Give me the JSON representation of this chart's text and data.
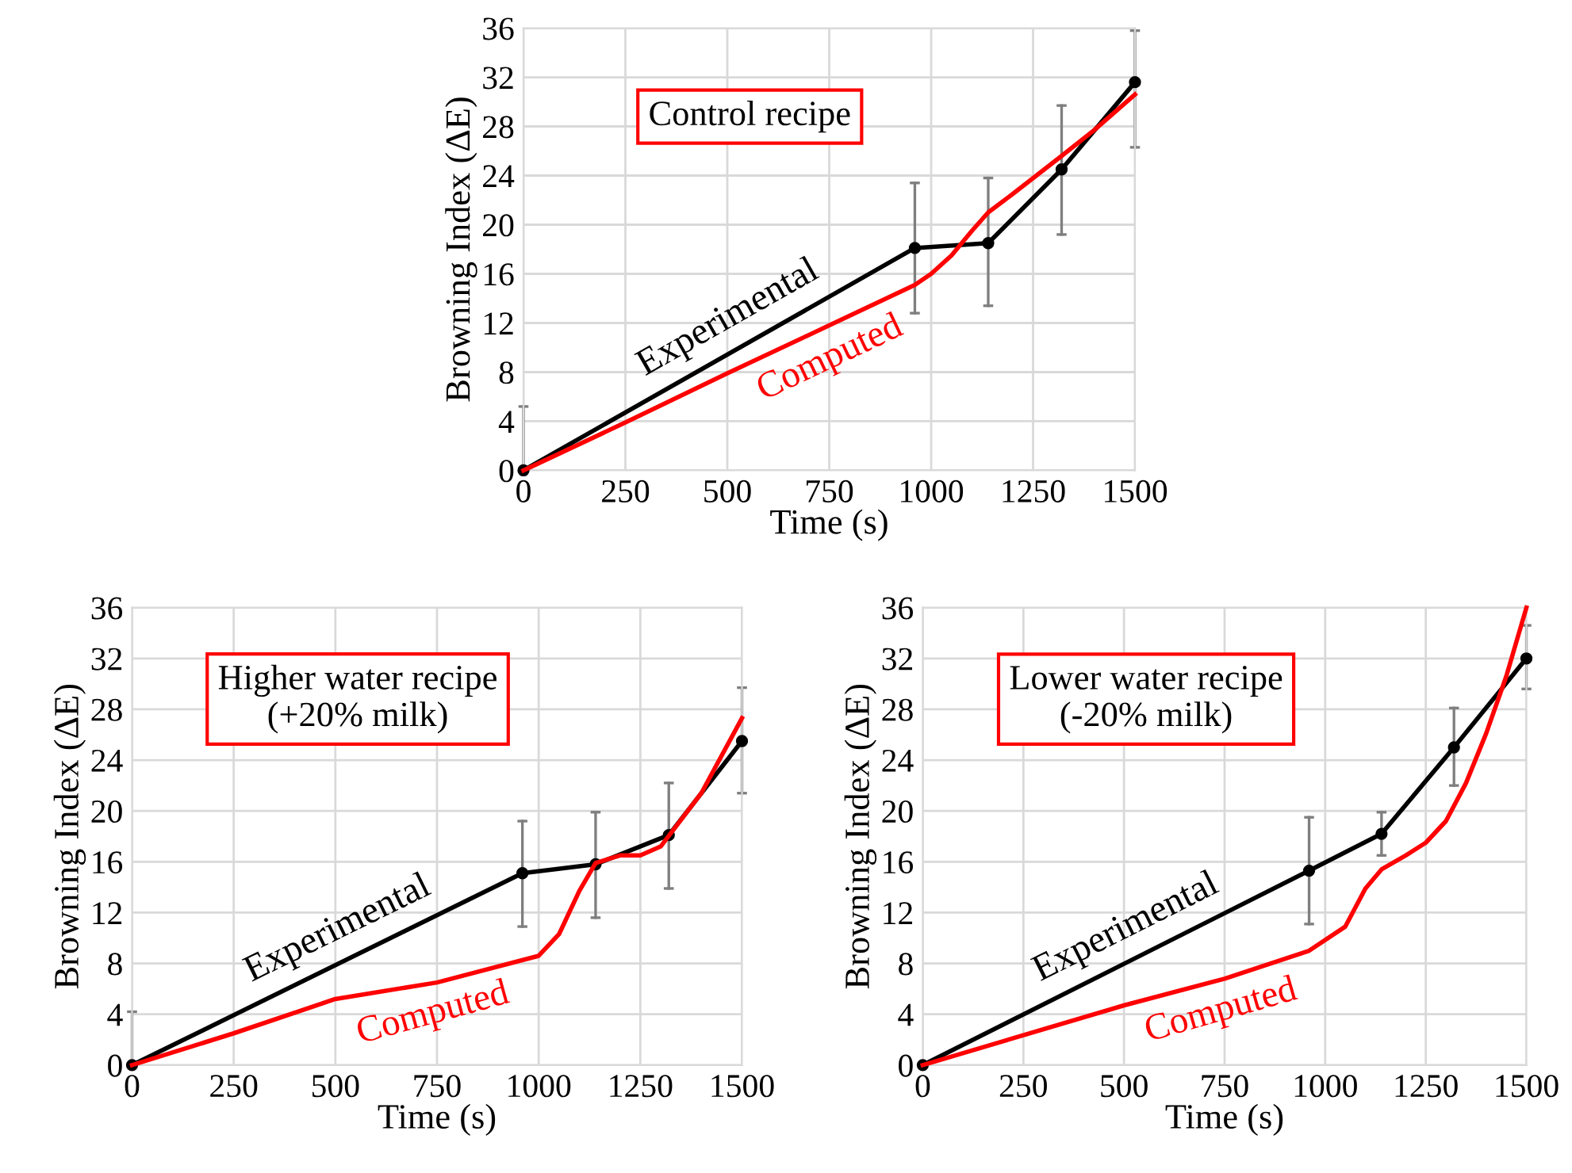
{
  "chart_data": [
    {
      "type": "line",
      "annotations": [
        "Control recipe"
      ],
      "xlabel": "Time (s)",
      "ylabel": "Browning Index (ΔE)",
      "xlim": [
        0,
        1500
      ],
      "xticks": [
        0,
        250,
        500,
        750,
        1000,
        1250,
        1500
      ],
      "ylim": [
        0,
        36
      ],
      "yticks": [
        0,
        4,
        8,
        12,
        16,
        20,
        24,
        28,
        32,
        36
      ],
      "grid": true,
      "line_style": "solid",
      "series": [
        {
          "name": "Experimental",
          "color": "#000000",
          "marker": "circle",
          "x": [
            0,
            960,
            1140,
            1320,
            1500
          ],
          "values": [
            0,
            18.1,
            18.5,
            24.5,
            31.6
          ],
          "errors": [
            [
              0,
              5.2
            ],
            [
              12.8,
              23.4
            ],
            [
              13.4,
              23.8
            ],
            [
              19.2,
              29.7
            ],
            [
              26.3,
              35.8
            ]
          ]
        },
        {
          "name": "Computed",
          "color": "#ff0000",
          "marker": "none",
          "x": [
            0,
            250,
            500,
            750,
            960,
            1000,
            1050,
            1100,
            1140,
            1200,
            1320,
            1400,
            1500
          ],
          "values": [
            0,
            3.9,
            7.9,
            11.8,
            15.1,
            16,
            17.5,
            19.5,
            21,
            22.5,
            25.6,
            27.7,
            30.6
          ]
        }
      ]
    },
    {
      "type": "line",
      "annotations": [
        "Higher water recipe\n(+20% milk)"
      ],
      "xlabel": "Time (s)",
      "ylabel": "Browning Index (ΔE)",
      "xlim": [
        0,
        1500
      ],
      "xticks": [
        0,
        250,
        500,
        750,
        1000,
        1250,
        1500
      ],
      "ylim": [
        0,
        36
      ],
      "yticks": [
        0,
        4,
        8,
        12,
        16,
        20,
        24,
        28,
        32,
        36
      ],
      "grid": true,
      "line_style": "solid",
      "series": [
        {
          "name": "Experimental",
          "color": "#000000",
          "marker": "circle",
          "x": [
            0,
            960,
            1140,
            1320,
            1500
          ],
          "values": [
            0,
            15.1,
            15.8,
            18.1,
            25.5
          ],
          "errors": [
            [
              0,
              4.2
            ],
            [
              10.9,
              19.2
            ],
            [
              11.6,
              19.9
            ],
            [
              13.9,
              22.2
            ],
            [
              21.4,
              29.7
            ]
          ]
        },
        {
          "name": "Computed",
          "color": "#ff0000",
          "marker": "none",
          "x": [
            0,
            250,
            500,
            750,
            1000,
            1050,
            1100,
            1140,
            1200,
            1250,
            1300,
            1400,
            1500
          ],
          "values": [
            0,
            2.5,
            5.2,
            6.5,
            8.6,
            10.3,
            13.7,
            15.9,
            16.5,
            16.5,
            17.2,
            21.4,
            27.3
          ]
        }
      ]
    },
    {
      "type": "line",
      "annotations": [
        "Lower water recipe\n(-20% milk)"
      ],
      "xlabel": "Time (s)",
      "ylabel": "Browning Index (ΔE)",
      "xlim": [
        0,
        1500
      ],
      "xticks": [
        0,
        250,
        500,
        750,
        1000,
        1250,
        1500
      ],
      "ylim": [
        0,
        36
      ],
      "yticks": [
        0,
        4,
        8,
        12,
        16,
        20,
        24,
        28,
        32,
        36
      ],
      "grid": true,
      "line_style": "solid",
      "series": [
        {
          "name": "Experimental",
          "color": "#000000",
          "marker": "circle",
          "x": [
            0,
            960,
            1140,
            1320,
            1500
          ],
          "values": [
            0,
            15.3,
            18.2,
            25.0,
            32.0
          ],
          "errors": [
            null,
            [
              11.1,
              19.5
            ],
            [
              16.5,
              19.9
            ],
            [
              22.0,
              28.1
            ],
            [
              29.6,
              34.6
            ]
          ]
        },
        {
          "name": "Computed",
          "color": "#ff0000",
          "marker": "none",
          "x": [
            0,
            500,
            750,
            960,
            1050,
            1100,
            1140,
            1200,
            1250,
            1300,
            1350,
            1400,
            1450,
            1500
          ],
          "values": [
            0,
            4.7,
            6.8,
            9.0,
            10.9,
            13.9,
            15.4,
            16.5,
            17.5,
            19.2,
            22.2,
            26.1,
            30.6,
            36
          ]
        }
      ]
    }
  ]
}
